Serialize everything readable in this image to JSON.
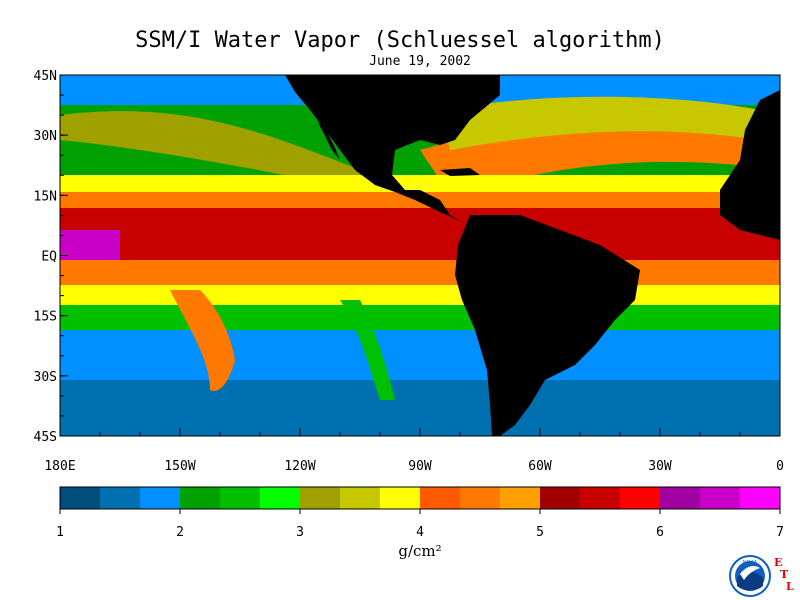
{
  "title": "SSM/I Water Vapor (Schluessel algorithm)",
  "date": "June 19, 2002",
  "map": {
    "lat_labels": [
      "45N",
      "30N",
      "15N",
      "EQ",
      "15S",
      "30S",
      "45S"
    ],
    "lon_labels": [
      "180E",
      "150W",
      "120W",
      "90W",
      "60W",
      "30W",
      "0"
    ],
    "lat_range": [
      -45,
      45
    ],
    "lon_range": [
      -180,
      0
    ],
    "land_color": "#000000"
  },
  "colorbar": {
    "min": 1,
    "max": 7,
    "tick_labels": [
      "1",
      "2",
      "3",
      "4",
      "5",
      "6",
      "7"
    ],
    "unit": "g/cm²",
    "colors": [
      "#004e7a",
      "#0070b0",
      "#0090ff",
      "#00a000",
      "#00c000",
      "#00ff00",
      "#a0a000",
      "#c8c800",
      "#ffff00",
      "#ff5a00",
      "#ff7800",
      "#ffa000",
      "#a00000",
      "#c80000",
      "#ff0000",
      "#a000a0",
      "#c800c8",
      "#ff00ff"
    ]
  },
  "logo": {
    "org": "NOAA",
    "letters": [
      "E",
      "T",
      "L"
    ]
  }
}
